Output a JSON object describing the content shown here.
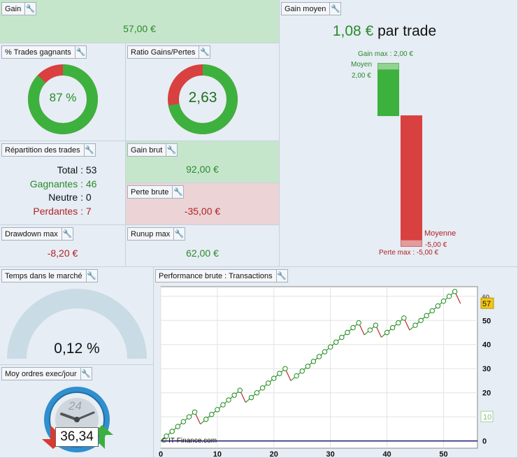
{
  "gain": {
    "title": "Gain",
    "value": "57,00 €"
  },
  "pct_trades": {
    "title": "% Trades gagnants",
    "value": "87 %",
    "win_fraction": 0.87
  },
  "ratio": {
    "title": "Ratio Gains/Pertes",
    "value": "2,63",
    "win_fraction": 0.72
  },
  "repartition": {
    "title": "Répartition des trades",
    "rows": [
      {
        "label": "Total :",
        "value": "53"
      },
      {
        "label": "Gagnantes :",
        "value": "46"
      },
      {
        "label": "Neutre :",
        "value": "0"
      },
      {
        "label": "Perdantes :",
        "value": "7"
      }
    ]
  },
  "gain_brut": {
    "title": "Gain brut",
    "value": "92,00 €"
  },
  "perte_brute": {
    "title": "Perte brute",
    "value": "-35,00 €"
  },
  "drawdown": {
    "title": "Drawdown max",
    "value": "-8,20 €"
  },
  "runup": {
    "title": "Runup max",
    "value": "62,00 €"
  },
  "gain_moyen": {
    "title": "Gain moyen",
    "amount": "1,08 €",
    "suffix": " par trade",
    "gain_max_label": "Gain max : 2,00 €",
    "moyen_label": "Moyen",
    "moyen_value": "2,00 €",
    "moyenne_label": "Moyenne",
    "moyenne_value": "-5,00 €",
    "perte_max_label": "Perte max : -5,00 €"
  },
  "temps": {
    "title": "Temps dans le marché",
    "value": "0,12 %"
  },
  "ordres": {
    "title": "Moy ordres exec/jour",
    "value": "36,34",
    "clock_number": "24"
  },
  "perf": {
    "title": "Performance brute : Transactions",
    "watermark": "© IT-Finance.com"
  },
  "colors": {
    "green": "#3db13d",
    "red": "#d94040",
    "light_green": "#c6e6cc",
    "pink": "#ebd3d6",
    "gauge": "#c9dbe5"
  },
  "chart_data": {
    "type": "line",
    "x_ticks": [
      "0",
      "10",
      "20",
      "30",
      "40",
      "50"
    ],
    "y_ticks": [
      "0",
      "10",
      "20",
      "30",
      "40",
      "50",
      "60"
    ],
    "xlim": [
      0,
      56
    ],
    "ylim": [
      -3,
      64
    ],
    "last_value_label": "57",
    "marker_label": "10",
    "x": [
      0,
      1,
      2,
      3,
      4,
      5,
      6,
      7,
      8,
      9,
      10,
      11,
      12,
      13,
      14,
      15,
      16,
      17,
      18,
      19,
      20,
      21,
      22,
      23,
      24,
      25,
      26,
      27,
      28,
      29,
      30,
      31,
      32,
      33,
      34,
      35,
      36,
      37,
      38,
      39,
      40,
      41,
      42,
      43,
      44,
      45,
      46,
      47,
      48,
      49,
      50,
      51,
      52,
      53
    ],
    "y": [
      0,
      2,
      4,
      6,
      8,
      10,
      12,
      7,
      9,
      11,
      13,
      15,
      17,
      19,
      21,
      16,
      18,
      20,
      22,
      24,
      26,
      28,
      30,
      25,
      27,
      29,
      31,
      33,
      35,
      37,
      39,
      41,
      43,
      45,
      47,
      49,
      44,
      46,
      48,
      43,
      45,
      47,
      49,
      51,
      46,
      48,
      50,
      52,
      54,
      56,
      58,
      60,
      62,
      57
    ],
    "highs": [
      6,
      14,
      22,
      35,
      43,
      52
    ]
  }
}
